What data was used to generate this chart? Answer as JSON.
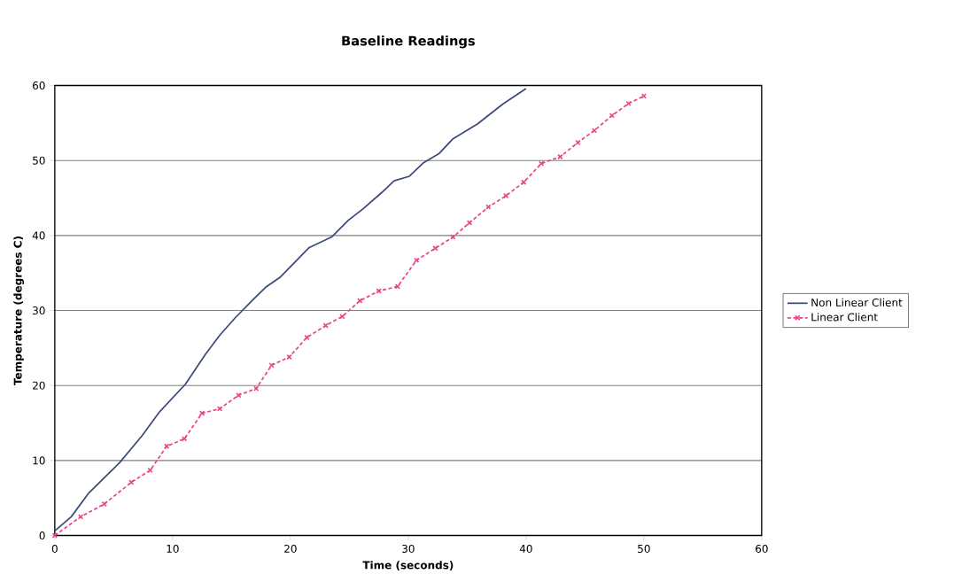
{
  "chart_data": {
    "type": "line",
    "title": "Baseline Readings",
    "xlabel": "Time (seconds)",
    "ylabel": "Temperature (degrees C)",
    "xlim": [
      0,
      60
    ],
    "ylim": [
      0,
      60
    ],
    "xticks": [
      0,
      10,
      20,
      30,
      40,
      50,
      60
    ],
    "yticks": [
      0,
      10,
      20,
      30,
      40,
      50,
      60
    ],
    "grid": "y",
    "legend": "right",
    "series": [
      {
        "name": "Non Linear Client",
        "color": "#3d4a7a",
        "marker": "none",
        "line_style": "solid",
        "x": [
          0,
          1.4,
          2.9,
          5.5,
          7.4,
          8.9,
          11.1,
          12.8,
          14.0,
          15.3,
          16.8,
          17.9,
          19.1,
          21.6,
          23.5,
          24.9,
          26.2,
          27.8,
          28.8,
          30.1,
          31.3,
          32.6,
          33.8,
          35.9,
          38.0,
          40.0
        ],
        "values": [
          0.6,
          2.5,
          5.7,
          9.7,
          13.3,
          16.5,
          20.2,
          24.2,
          26.7,
          29.0,
          31.4,
          33.1,
          34.4,
          38.4,
          39.8,
          42.0,
          43.6,
          45.8,
          47.3,
          47.9,
          49.7,
          50.9,
          52.9,
          54.9,
          57.5,
          59.6
        ]
      },
      {
        "name": "Linear Client",
        "color": "#e8468a",
        "marker": "cross",
        "line_style": "dashed",
        "x": [
          0,
          2.2,
          4.2,
          6.5,
          8.1,
          9.5,
          11.0,
          12.5,
          14.0,
          15.6,
          17.1,
          18.4,
          19.9,
          21.4,
          23.0,
          24.4,
          25.9,
          27.5,
          29.1,
          30.7,
          32.3,
          33.8,
          35.2,
          36.8,
          38.3,
          39.8,
          41.3,
          42.9,
          44.4,
          45.8,
          47.3,
          48.7,
          50.0
        ],
        "values": [
          0,
          2.5,
          4.2,
          7.1,
          8.7,
          11.9,
          12.9,
          16.3,
          16.9,
          18.7,
          19.6,
          22.7,
          23.8,
          26.4,
          28.0,
          29.2,
          31.3,
          32.6,
          33.2,
          36.7,
          38.3,
          39.8,
          41.7,
          43.8,
          45.3,
          47.1,
          49.6,
          50.5,
          52.4,
          54.0,
          56.0,
          57.6,
          58.6
        ]
      }
    ]
  }
}
